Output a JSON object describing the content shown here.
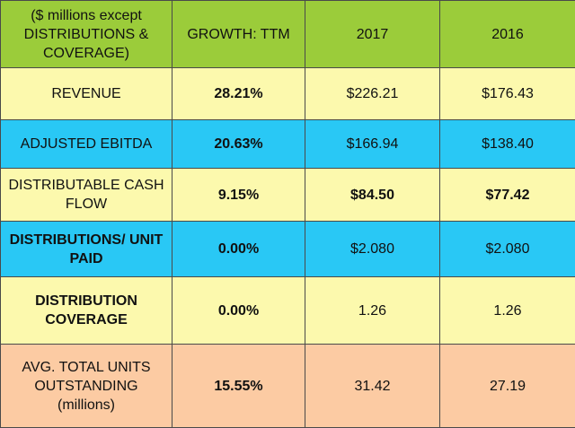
{
  "header": {
    "label": "($ millions except DISTRIBUTIONS & COVERAGE)",
    "growth": "GROWTH: TTM",
    "year1": "2017",
    "year2": "2016"
  },
  "rows": [
    {
      "label": "REVENUE",
      "growth": "28.21%",
      "y2017": "$226.21",
      "y2016": "$176.43"
    },
    {
      "label": "ADJUSTED EBITDA",
      "growth": "20.63%",
      "y2017": "$166.94",
      "y2016": "$138.40"
    },
    {
      "label": "DISTRIBUTABLE CASH FLOW",
      "growth": "9.15%",
      "y2017": "$84.50",
      "y2016": "$77.42"
    },
    {
      "label": "DISTRIBUTIONS/ UNIT PAID",
      "growth": "0.00%",
      "y2017": "$2.080",
      "y2016": "$2.080"
    },
    {
      "label": "DISTRIBUTION COVERAGE",
      "growth": "0.00%",
      "y2017": "1.26",
      "y2016": "1.26"
    },
    {
      "label": "AVG.  TOTAL UNITS OUTSTANDING (millions)",
      "growth": "15.55%",
      "y2017": "31.42",
      "y2016": "27.19"
    }
  ],
  "colors": {
    "header": "#9bcc3a",
    "yellow": "#fcf9ad",
    "blue": "#29c8f5",
    "peach": "#fccba3"
  }
}
